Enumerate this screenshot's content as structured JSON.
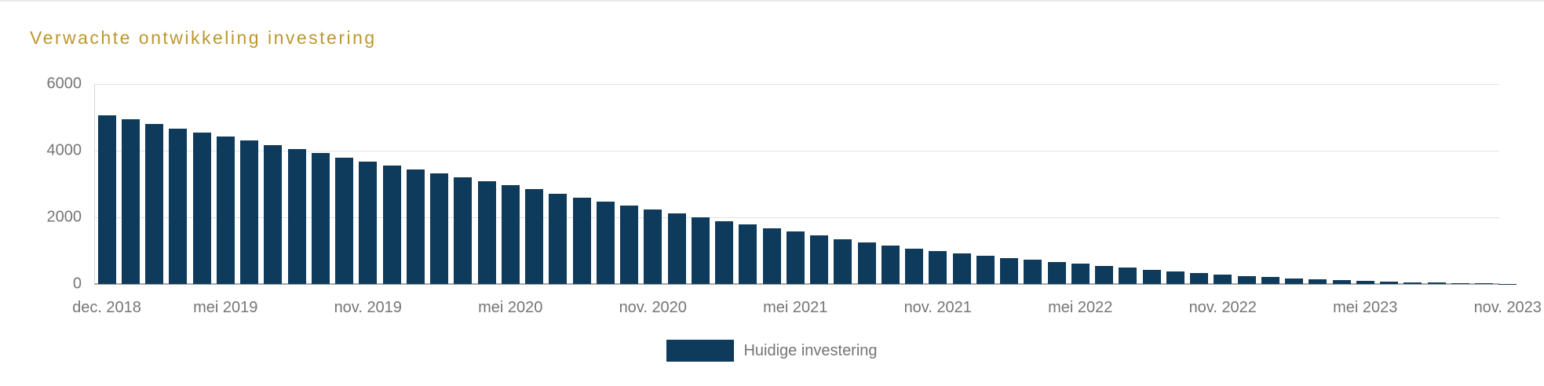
{
  "page": {
    "background": "#ffffff"
  },
  "chart_data": {
    "type": "bar",
    "title": "Verwachte ontwikkeling investering",
    "title_color": "#bd972d",
    "bar_color": "#0e3a5c",
    "axis_text_color": "#757575",
    "grid": true,
    "ylim": [
      0,
      6000
    ],
    "y_ticks": [
      0,
      2000,
      4000,
      6000
    ],
    "x_tick_labels": [
      {
        "index": 0,
        "label": "dec. 2018"
      },
      {
        "index": 5,
        "label": "mei 2019"
      },
      {
        "index": 11,
        "label": "nov. 2019"
      },
      {
        "index": 17,
        "label": "mei 2020"
      },
      {
        "index": 23,
        "label": "nov. 2020"
      },
      {
        "index": 29,
        "label": "mei 2021"
      },
      {
        "index": 35,
        "label": "nov. 2021"
      },
      {
        "index": 41,
        "label": "mei 2022"
      },
      {
        "index": 47,
        "label": "nov. 2022"
      },
      {
        "index": 53,
        "label": "mei 2023"
      },
      {
        "index": 59,
        "label": "nov. 2023"
      }
    ],
    "legend": {
      "position": "bottom",
      "items": [
        {
          "label": "Huidige investering",
          "color": "#0e3a5c"
        }
      ]
    },
    "series": [
      {
        "name": "Huidige investering",
        "values": [
          5060,
          4930,
          4800,
          4670,
          4540,
          4420,
          4295,
          4175,
          4055,
          3930,
          3800,
          3680,
          3560,
          3435,
          3320,
          3200,
          3090,
          2965,
          2840,
          2715,
          2590,
          2470,
          2360,
          2230,
          2120,
          2000,
          1890,
          1785,
          1680,
          1565,
          1455,
          1350,
          1250,
          1155,
          1065,
          985,
          915,
          845,
          785,
          725,
          665,
          605,
          545,
          490,
          435,
          380,
          330,
          285,
          245,
          210,
          175,
          145,
          115,
          90,
          70,
          52,
          38,
          26,
          16,
          8
        ]
      }
    ]
  }
}
